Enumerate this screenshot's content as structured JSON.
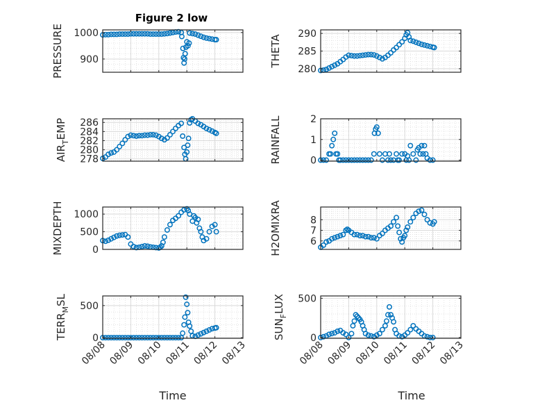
{
  "figure_title": "Figure 2 low",
  "colors": {
    "marker": "#0072BD",
    "axes": "#262626",
    "grid": "#d9d9d9"
  },
  "chart_data": [
    {
      "type": "scatter",
      "ylabel": "PRESSURE",
      "xlim": [
        0,
        5
      ],
      "ylim": [
        850,
        1010
      ],
      "yticks": [
        900,
        1000
      ],
      "x_ticks": [
        "08/08",
        "08/09",
        "08/10",
        "08/11",
        "08/12",
        "08/13"
      ],
      "x": [
        0.0,
        0.1,
        0.2,
        0.3,
        0.4,
        0.5,
        0.6,
        0.7,
        0.8,
        0.9,
        1.0,
        1.1,
        1.2,
        1.3,
        1.4,
        1.5,
        1.6,
        1.7,
        1.8,
        1.9,
        2.0,
        2.1,
        2.2,
        2.3,
        2.4,
        2.5,
        2.6,
        2.7,
        2.8,
        2.82,
        2.86,
        2.88,
        2.9,
        2.92,
        2.94,
        2.97,
        3.0,
        3.04,
        3.08,
        3.1,
        3.2,
        3.3,
        3.4,
        3.5,
        3.6,
        3.7,
        3.8,
        3.9,
        4.0,
        4.05
      ],
      "y": [
        991,
        992,
        992,
        993,
        993,
        993,
        994,
        994,
        994,
        994,
        995,
        995,
        995,
        995,
        995,
        995,
        995,
        994,
        994,
        994,
        994,
        994,
        995,
        996,
        998,
        1000,
        1002,
        1003,
        1000,
        985,
        940,
        905,
        885,
        900,
        920,
        945,
        965,
        950,
        960,
        998,
        996,
        994,
        990,
        986,
        982,
        979,
        977,
        975,
        973,
        973
      ]
    },
    {
      "type": "scatter",
      "ylabel": "THETA",
      "xlim": [
        0,
        5
      ],
      "ylim": [
        279,
        291
      ],
      "yticks": [
        280,
        285,
        290
      ],
      "x_ticks": [
        "08/08",
        "08/09",
        "08/10",
        "08/11",
        "08/12",
        "08/13"
      ],
      "x": [
        0.0,
        0.1,
        0.2,
        0.3,
        0.4,
        0.5,
        0.6,
        0.7,
        0.8,
        0.9,
        1.0,
        1.1,
        1.2,
        1.3,
        1.4,
        1.5,
        1.6,
        1.7,
        1.8,
        1.9,
        2.0,
        2.1,
        2.2,
        2.3,
        2.4,
        2.5,
        2.6,
        2.7,
        2.8,
        2.9,
        3.0,
        3.05,
        3.1,
        3.15,
        3.2,
        3.3,
        3.4,
        3.5,
        3.6,
        3.7,
        3.8,
        3.9,
        4.0,
        4.05
      ],
      "y": [
        279.5,
        279.6,
        279.8,
        280.2,
        280.6,
        281.0,
        281.4,
        282.0,
        282.6,
        283.3,
        283.8,
        283.7,
        283.6,
        283.6,
        283.7,
        283.8,
        283.9,
        284.0,
        284.0,
        283.9,
        283.6,
        283.2,
        282.8,
        283.2,
        283.8,
        284.5,
        285.3,
        286.0,
        286.8,
        287.6,
        288.6,
        289.6,
        290.2,
        289.0,
        288.0,
        287.8,
        287.5,
        287.2,
        286.9,
        286.7,
        286.5,
        286.3,
        286.1,
        286.0
      ]
    },
    {
      "type": "scatter",
      "ylabel": "AIR_TEMP",
      "ylabel_main": "AIR",
      "ylabel_sub": "T",
      "ylabel_rest": "EMP",
      "xlim": [
        0,
        5
      ],
      "ylim": [
        277.5,
        286.8
      ],
      "yticks": [
        278,
        280,
        282,
        284,
        286
      ],
      "x_ticks": [
        "08/08",
        "08/09",
        "08/10",
        "08/11",
        "08/12",
        "08/13"
      ],
      "x": [
        0.0,
        0.1,
        0.2,
        0.3,
        0.4,
        0.5,
        0.6,
        0.7,
        0.8,
        0.9,
        1.0,
        1.1,
        1.2,
        1.3,
        1.4,
        1.5,
        1.6,
        1.7,
        1.8,
        1.9,
        2.0,
        2.1,
        2.2,
        2.3,
        2.4,
        2.5,
        2.6,
        2.7,
        2.8,
        2.85,
        2.9,
        2.93,
        2.96,
        3.0,
        3.03,
        3.06,
        3.1,
        3.15,
        3.2,
        3.3,
        3.4,
        3.5,
        3.6,
        3.7,
        3.8,
        3.9,
        4.0,
        4.05
      ],
      "y": [
        278.1,
        278.4,
        279.0,
        279.3,
        279.5,
        280.0,
        280.7,
        281.4,
        282.2,
        282.9,
        283.2,
        283.1,
        283.0,
        283.1,
        283.1,
        283.2,
        283.2,
        283.3,
        283.3,
        283.2,
        282.9,
        282.5,
        282.2,
        282.6,
        283.3,
        284.0,
        284.7,
        285.3,
        285.8,
        283.0,
        280.5,
        279.0,
        278.0,
        279.5,
        281.0,
        282.5,
        285.9,
        286.6,
        286.8,
        286.3,
        285.8,
        285.5,
        285.1,
        284.7,
        284.4,
        284.1,
        283.8,
        283.6
      ]
    },
    {
      "type": "scatter",
      "ylabel": "RAINFALL",
      "xlim": [
        0,
        5
      ],
      "ylim": [
        -0.05,
        2
      ],
      "yticks": [
        0,
        1,
        2
      ],
      "x_ticks": [
        "08/08",
        "08/09",
        "08/10",
        "08/11",
        "08/12",
        "08/13"
      ],
      "x": [
        0.0,
        0.1,
        0.2,
        0.3,
        0.35,
        0.4,
        0.45,
        0.5,
        0.55,
        0.6,
        0.65,
        0.7,
        0.8,
        0.9,
        1.0,
        1.1,
        1.2,
        1.3,
        1.4,
        1.5,
        1.6,
        1.7,
        1.8,
        1.9,
        1.92,
        1.96,
        2.0,
        2.05,
        2.1,
        2.2,
        2.3,
        2.4,
        2.45,
        2.5,
        2.6,
        2.7,
        2.75,
        2.8,
        2.9,
        3.0,
        3.05,
        3.1,
        3.15,
        3.2,
        3.3,
        3.4,
        3.45,
        3.5,
        3.55,
        3.6,
        3.65,
        3.7,
        3.75,
        3.8,
        3.9,
        4.0
      ],
      "y": [
        0,
        0,
        0,
        0.3,
        0.3,
        0.7,
        1.0,
        1.3,
        0.3,
        0.3,
        0,
        0,
        0,
        0,
        0,
        0,
        0,
        0,
        0,
        0,
        0,
        0,
        0,
        0.3,
        1.3,
        1.5,
        1.6,
        1.3,
        0.3,
        0,
        0.3,
        0,
        0.3,
        0,
        0,
        0.3,
        0,
        0,
        0.3,
        0.3,
        0,
        0.2,
        0,
        0.7,
        0.3,
        0,
        0.5,
        0.6,
        0.3,
        0.7,
        0.3,
        0.7,
        0.3,
        0.1,
        0,
        0
      ]
    },
    {
      "type": "scatter",
      "ylabel": "MIXDEPTH",
      "xlim": [
        0,
        5
      ],
      "ylim": [
        0,
        1200
      ],
      "yticks": [
        0,
        500,
        1000
      ],
      "x_ticks": [
        "08/08",
        "08/09",
        "08/10",
        "08/11",
        "08/12",
        "08/13"
      ],
      "x": [
        0.0,
        0.1,
        0.2,
        0.3,
        0.4,
        0.5,
        0.6,
        0.7,
        0.8,
        0.9,
        1.0,
        1.1,
        1.2,
        1.3,
        1.4,
        1.5,
        1.6,
        1.7,
        1.8,
        1.9,
        2.0,
        2.05,
        2.1,
        2.15,
        2.2,
        2.3,
        2.4,
        2.5,
        2.6,
        2.7,
        2.8,
        2.9,
        3.0,
        3.05,
        3.1,
        3.2,
        3.25,
        3.3,
        3.35,
        3.4,
        3.45,
        3.5,
        3.55,
        3.6,
        3.7,
        3.8,
        3.9,
        4.0,
        4.05
      ],
      "y": [
        250,
        230,
        260,
        300,
        340,
        380,
        400,
        410,
        420,
        350,
        150,
        80,
        50,
        60,
        80,
        100,
        90,
        70,
        60,
        50,
        40,
        60,
        100,
        200,
        350,
        550,
        700,
        820,
        880,
        950,
        1050,
        1120,
        1150,
        1100,
        1000,
        800,
        950,
        900,
        750,
        850,
        600,
        500,
        350,
        250,
        300,
        500,
        650,
        700,
        500
      ]
    },
    {
      "type": "scatter",
      "ylabel": "H2OMIXRA",
      "xlim": [
        0,
        5
      ],
      "ylim": [
        5.2,
        9.2
      ],
      "yticks": [
        6,
        7,
        8
      ],
      "x_ticks": [
        "08/08",
        "08/09",
        "08/10",
        "08/11",
        "08/12",
        "08/13"
      ],
      "x": [
        0.0,
        0.1,
        0.2,
        0.3,
        0.4,
        0.5,
        0.6,
        0.7,
        0.8,
        0.9,
        0.95,
        1.0,
        1.1,
        1.2,
        1.3,
        1.4,
        1.5,
        1.6,
        1.7,
        1.8,
        1.9,
        2.0,
        2.1,
        2.2,
        2.3,
        2.4,
        2.5,
        2.6,
        2.7,
        2.75,
        2.8,
        2.85,
        2.9,
        2.95,
        3.0,
        3.05,
        3.1,
        3.2,
        3.3,
        3.4,
        3.5,
        3.6,
        3.7,
        3.8,
        3.9,
        4.0,
        4.05
      ],
      "y": [
        5.4,
        5.6,
        5.9,
        6.0,
        6.2,
        6.3,
        6.4,
        6.5,
        6.6,
        7.0,
        7.1,
        7.0,
        6.8,
        6.6,
        6.6,
        6.5,
        6.5,
        6.4,
        6.4,
        6.3,
        6.3,
        6.2,
        6.5,
        6.7,
        7.0,
        7.2,
        7.4,
        7.8,
        8.2,
        7.4,
        6.8,
        6.2,
        5.9,
        6.3,
        6.5,
        7.0,
        7.3,
        7.8,
        8.2,
        8.6,
        8.8,
        8.9,
        8.5,
        8.0,
        7.7,
        7.6,
        7.8
      ]
    },
    {
      "type": "scatter",
      "ylabel": "TERR_MSL",
      "ylabel_main": "TERR",
      "ylabel_sub": "M",
      "ylabel_rest": "SL",
      "xlim": [
        0,
        5
      ],
      "ylim": [
        -10,
        650
      ],
      "yticks": [
        0,
        500
      ],
      "x_ticks": [
        "08/08",
        "08/09",
        "08/10",
        "08/11",
        "08/12",
        "08/13"
      ],
      "x": [
        0.0,
        0.1,
        0.2,
        0.3,
        0.4,
        0.5,
        0.6,
        0.7,
        0.8,
        0.9,
        1.0,
        1.1,
        1.2,
        1.3,
        1.4,
        1.5,
        1.6,
        1.7,
        1.8,
        1.9,
        2.0,
        2.1,
        2.2,
        2.3,
        2.4,
        2.5,
        2.6,
        2.7,
        2.8,
        2.85,
        2.9,
        2.93,
        2.96,
        3.0,
        3.03,
        3.06,
        3.1,
        3.15,
        3.2,
        3.3,
        3.4,
        3.5,
        3.6,
        3.7,
        3.8,
        3.9,
        4.0,
        4.05
      ],
      "y": [
        0,
        0,
        0,
        0,
        0,
        0,
        0,
        0,
        0,
        0,
        0,
        0,
        0,
        0,
        0,
        0,
        0,
        0,
        0,
        0,
        0,
        0,
        0,
        0,
        0,
        0,
        0,
        0,
        0,
        70,
        200,
        320,
        630,
        520,
        390,
        240,
        180,
        100,
        30,
        20,
        40,
        60,
        80,
        100,
        120,
        140,
        150,
        155
      ]
    },
    {
      "type": "scatter",
      "ylabel": "SUN_FLUX",
      "ylabel_main": "SUN",
      "ylabel_sub": "F",
      "ylabel_rest": "LUX",
      "xlim": [
        0,
        5
      ],
      "ylim": [
        -10,
        530
      ],
      "yticks": [
        0,
        500
      ],
      "x_ticks": [
        "08/08",
        "08/09",
        "08/10",
        "08/11",
        "08/12",
        "08/13"
      ],
      "x": [
        0.0,
        0.1,
        0.2,
        0.3,
        0.4,
        0.5,
        0.6,
        0.7,
        0.8,
        0.9,
        1.0,
        1.1,
        1.15,
        1.2,
        1.25,
        1.3,
        1.35,
        1.4,
        1.45,
        1.5,
        1.55,
        1.6,
        1.7,
        1.8,
        1.9,
        2.0,
        2.1,
        2.2,
        2.3,
        2.35,
        2.4,
        2.45,
        2.5,
        2.55,
        2.6,
        2.65,
        2.7,
        2.8,
        2.9,
        3.0,
        3.1,
        3.2,
        3.3,
        3.4,
        3.5,
        3.6,
        3.7,
        3.8,
        3.9,
        4.0
      ],
      "y": [
        0,
        10,
        20,
        40,
        50,
        60,
        80,
        90,
        60,
        40,
        0,
        50,
        150,
        210,
        290,
        270,
        250,
        230,
        200,
        150,
        100,
        50,
        30,
        20,
        10,
        30,
        50,
        100,
        150,
        210,
        290,
        390,
        290,
        250,
        200,
        100,
        50,
        20,
        10,
        30,
        60,
        100,
        150,
        110,
        80,
        50,
        20,
        10,
        0,
        0
      ]
    }
  ],
  "x_axis_label": "Time"
}
